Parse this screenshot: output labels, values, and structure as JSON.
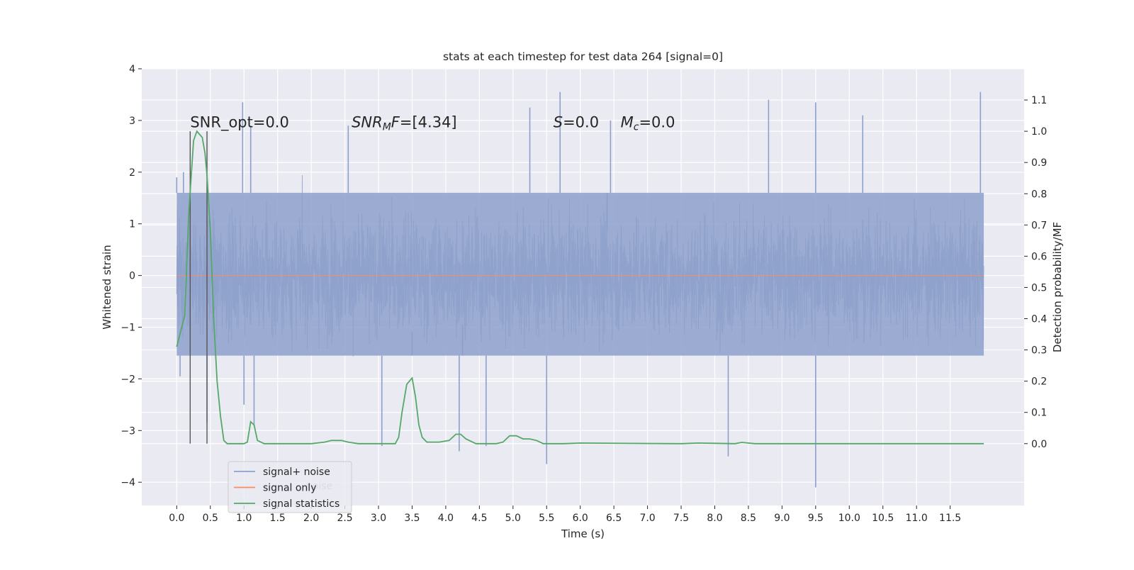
{
  "chart_data": {
    "type": "line",
    "title": "stats at each timestep for test data 264 [signal=0]",
    "xlabel": "Time (s)",
    "ylabel": "Whitened strain",
    "y2label": "Detection probability/MF",
    "xlim": [
      -0.52,
      12.6
    ],
    "ylim": [
      -4.45,
      4.0
    ],
    "y2lim": [
      -0.198,
      1.2
    ],
    "x_ticks": [
      0.0,
      0.5,
      1.0,
      1.5,
      2.0,
      2.5,
      3.0,
      3.5,
      4.0,
      4.5,
      5.0,
      5.5,
      6.0,
      6.5,
      7.0,
      7.5,
      8.0,
      8.5,
      9.0,
      9.5,
      10.0,
      10.5,
      11.0,
      11.5
    ],
    "x_tick_labels": [
      "0.0",
      "0.5",
      "1.0",
      "1.5",
      "2.0",
      "2.5",
      "3.0",
      "3.5",
      "4.0",
      "4.5",
      "5.0",
      "5.5",
      "6.0",
      "6.5",
      "7.0",
      "7.5",
      "8.0",
      "8.5",
      "9.0",
      "9.5",
      "10.0",
      "10.5",
      "11.0",
      "11.5"
    ],
    "y_ticks": [
      4,
      3,
      2,
      1,
      0,
      -1,
      -2,
      -3,
      -4
    ],
    "y_tick_labels": [
      "4",
      "3",
      "2",
      "1",
      "0",
      "−1",
      "−2",
      "−3",
      "−4"
    ],
    "y2_ticks": [
      1.1,
      1.0,
      0.9,
      0.8,
      0.7,
      0.6,
      0.5,
      0.4,
      0.3,
      0.2,
      0.1,
      0.0
    ],
    "y2_tick_labels": [
      "1.1",
      "1.0",
      "0.9",
      "0.8",
      "0.7",
      "0.6",
      "0.5",
      "0.4",
      "0.3",
      "0.2",
      "0.1",
      "0.0"
    ],
    "grid": true,
    "series": [
      {
        "name": "signal+ noise",
        "color": "#8da0cb",
        "description_kind": "noise",
        "time_range": [
          0.0,
          12.0
        ],
        "typical_range": [
          -1.55,
          1.6
        ],
        "peak_range": [
          -4.1,
          3.6
        ],
        "spikes": [
          {
            "x": 0.0,
            "y": 1.9
          },
          {
            "x": 0.05,
            "y": -1.95
          },
          {
            "x": 0.1,
            "y": 2.0
          },
          {
            "x": 0.45,
            "y": -2.85
          },
          {
            "x": 0.98,
            "y": 3.35
          },
          {
            "x": 1.0,
            "y": -2.5
          },
          {
            "x": 1.1,
            "y": 2.9
          },
          {
            "x": 1.15,
            "y": -2.9
          },
          {
            "x": 2.55,
            "y": 2.9
          },
          {
            "x": 3.05,
            "y": -3.3
          },
          {
            "x": 3.5,
            "y": -1.1
          },
          {
            "x": 4.2,
            "y": -3.4
          },
          {
            "x": 4.25,
            "y": -0.95
          },
          {
            "x": 4.6,
            "y": -3.3
          },
          {
            "x": 5.25,
            "y": 3.25
          },
          {
            "x": 5.5,
            "y": -3.65
          },
          {
            "x": 5.7,
            "y": 3.55
          },
          {
            "x": 6.4,
            "y": 0.85
          },
          {
            "x": 6.45,
            "y": 3.0
          },
          {
            "x": 8.2,
            "y": -3.5
          },
          {
            "x": 8.8,
            "y": 3.4
          },
          {
            "x": 9.5,
            "y": -4.1
          },
          {
            "x": 9.5,
            "y": 3.35
          },
          {
            "x": 10.2,
            "y": 3.1
          },
          {
            "x": 11.95,
            "y": 3.55
          }
        ]
      },
      {
        "name": "signal only",
        "color": "#fc8d62",
        "x": [
          0.0,
          12.0
        ],
        "y": [
          0.0,
          0.0
        ]
      },
      {
        "name": "signal statistics",
        "color": "#55a868",
        "axis": "right",
        "x": [
          0.0,
          0.12,
          0.18,
          0.25,
          0.3,
          0.38,
          0.42,
          0.45,
          0.5,
          0.55,
          0.6,
          0.65,
          0.7,
          0.75,
          0.8,
          1.0,
          1.05,
          1.1,
          1.15,
          1.2,
          1.3,
          1.5,
          2.0,
          2.2,
          2.3,
          2.45,
          2.55,
          2.7,
          3.0,
          3.25,
          3.3,
          3.35,
          3.42,
          3.5,
          3.55,
          3.6,
          3.65,
          3.72,
          3.8,
          3.9,
          4.05,
          4.15,
          4.22,
          4.3,
          4.45,
          4.6,
          4.75,
          4.85,
          4.95,
          5.05,
          5.15,
          5.25,
          5.35,
          5.45,
          5.55,
          5.75,
          6.0,
          7.5,
          7.75,
          8.3,
          8.4,
          8.6,
          9.5,
          12.0
        ],
        "y": [
          0.31,
          0.41,
          0.74,
          0.97,
          1.0,
          0.98,
          0.93,
          0.86,
          0.68,
          0.4,
          0.2,
          0.09,
          0.01,
          0.0,
          0.0,
          0.0,
          0.005,
          0.07,
          0.06,
          0.01,
          0.0,
          0.0,
          0.0,
          0.005,
          0.01,
          0.01,
          0.005,
          0.0,
          0.0,
          0.0,
          0.02,
          0.1,
          0.19,
          0.21,
          0.15,
          0.06,
          0.02,
          0.005,
          0.005,
          0.005,
          0.01,
          0.03,
          0.03,
          0.015,
          0.0,
          0.0,
          0.0,
          0.005,
          0.025,
          0.025,
          0.015,
          0.015,
          0.01,
          0.0,
          0.0,
          0.0,
          0.002,
          0.0,
          0.002,
          0.0,
          0.004,
          0.0,
          0.0,
          0.0
        ]
      }
    ],
    "vlines": [
      0.2,
      0.45
    ],
    "vline_color": "#555555",
    "annotations": {
      "snr_opt": "SNR_opt=0.0",
      "snr_mf_main": "SNR",
      "snr_mf_sub": "M",
      "snr_mf_rest": "F=[4.34]",
      "s_main": "S",
      "s_rest": "=0.0",
      "mc_main": "M",
      "mc_sub": "c",
      "mc_rest": "=0.0"
    },
    "legend": {
      "placement": "lower-left",
      "entries": [
        "signal+ noise",
        "signal only",
        "signal statistics"
      ],
      "occluded_text": "noise"
    },
    "colors": {
      "plot_background": "#eaeaf2",
      "grid": "#ffffff"
    }
  }
}
